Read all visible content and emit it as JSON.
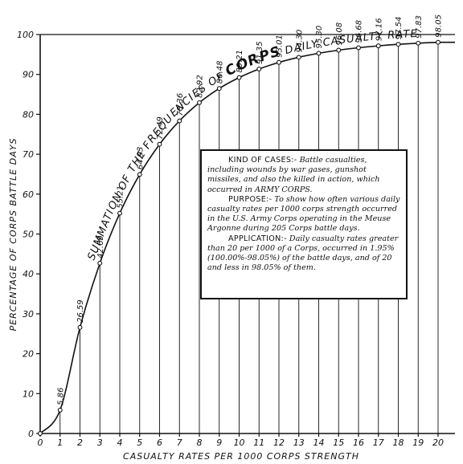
{
  "chart_data": {
    "type": "line",
    "xlabel": "CASUALTY RATES PER 1000 CORPS STRENGTH",
    "ylabel": "PERCENTAGE OF CORPS BATTLE DAYS",
    "xlim": [
      0,
      20
    ],
    "ylim": [
      0,
      100
    ],
    "x_ticks": [
      "0",
      "1",
      "2",
      "3",
      "4",
      "5",
      "6",
      "7",
      "8",
      "9",
      "10",
      "11",
      "12",
      "13",
      "14",
      "15",
      "16",
      "17",
      "18",
      "19",
      "20"
    ],
    "y_ticks": [
      "0",
      "10",
      "20",
      "30",
      "40",
      "50",
      "60",
      "70",
      "80",
      "90",
      "100"
    ],
    "grid": "vertical lines at each casualty rate from 1 to 20",
    "series": [
      {
        "points": [
          {
            "x": 0,
            "y": 0,
            "label": ""
          },
          {
            "x": 1,
            "y": 5.86,
            "label": "5.86"
          },
          {
            "x": 2,
            "y": 26.59,
            "label": "26.59"
          },
          {
            "x": 3,
            "y": 42.69,
            "label": "42.69"
          },
          {
            "x": 4,
            "y": 55.21,
            "label": "55.21"
          },
          {
            "x": 5,
            "y": 64.93,
            "label": "64.93"
          },
          {
            "x": 6,
            "y": 72.49,
            "label": "72.49"
          },
          {
            "x": 7,
            "y": 78.36,
            "label": "78.36"
          },
          {
            "x": 8,
            "y": 82.92,
            "label": "82.92"
          },
          {
            "x": 9,
            "y": 86.48,
            "label": "86.48"
          },
          {
            "x": 10,
            "y": 89.21,
            "label": "89.21"
          },
          {
            "x": 11,
            "y": 91.35,
            "label": "91.35"
          },
          {
            "x": 12,
            "y": 93.01,
            "label": "93.01"
          },
          {
            "x": 13,
            "y": 94.3,
            "label": "94.30"
          },
          {
            "x": 14,
            "y": 95.3,
            "label": "95.30"
          },
          {
            "x": 15,
            "y": 96.08,
            "label": "96.08"
          },
          {
            "x": 16,
            "y": 96.68,
            "label": "96.68"
          },
          {
            "x": 17,
            "y": 97.16,
            "label": "97.16"
          },
          {
            "x": 18,
            "y": 97.54,
            "label": "97.54"
          },
          {
            "x": 19,
            "y": 97.83,
            "label": "97.83"
          },
          {
            "x": 20,
            "y": 98.05,
            "label": "98.05"
          }
        ]
      }
    ],
    "curve_annotation": {
      "part1": "SUMMATION OF THE FREQUENCIES OF ",
      "part2": "CORPS",
      "part3": " DAILY CASUALTY RATES"
    }
  },
  "info_box": {
    "kind_head": "KIND OF CASES:-",
    "kind_text": " Battle casualties, including wounds by war gases, gunshot missiles, and also the killed in action, which occurred in ARMY CORPS.",
    "purpose_head": "PURPOSE:-",
    "purpose_text": " To show how often various daily casualty rates per 1000 corps strength occurred in the U.S. Army Corps operating in the Meuse Argonne during 205 Corps battle days.",
    "application_head": "APPLICATION:-",
    "application_text": " Daily casualty rates greater than 20 per 1000 of a Corps, occurred in 1.95% (100.00%-98.05%) of the battle days, and of 20 and less in 98.05% of them."
  }
}
